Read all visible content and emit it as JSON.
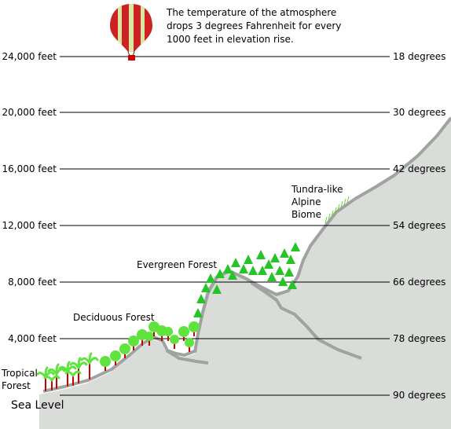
{
  "note": {
    "lines": [
      "The temperature of the atmosphere",
      "drops 3 degrees Fahrenheit for every",
      "1000 feet in elevation rise."
    ]
  },
  "elevations": [
    {
      "feet": "24,000 feet",
      "temp": "18 degrees"
    },
    {
      "feet": "20,000 feet",
      "temp": "30 degrees"
    },
    {
      "feet": "16,000 feet",
      "temp": "42 degrees"
    },
    {
      "feet": "12,000 feet",
      "temp": "54 degrees"
    },
    {
      "feet": "8,000 feet",
      "temp": "66 degrees"
    },
    {
      "feet": "4,000 feet",
      "temp": "78 degrees"
    },
    {
      "feet": "",
      "temp": "90 degrees"
    }
  ],
  "sea_level": "Sea Level",
  "biomes": {
    "tropical": [
      "Tropical",
      "Forest"
    ],
    "deciduous": "Deciduous Forest",
    "evergreen": "Evergreen Forest",
    "tundra": [
      "Tundra-like",
      "Alpine",
      "Biome"
    ]
  },
  "colors": {
    "mountain": "#d9dcd9",
    "ridge": "#a0a3a0",
    "tree_green": "#26c426",
    "deciduous_green": "#5fe33f",
    "trunk": "#cc0000",
    "balloon_red": "#cc2222",
    "balloon_stripe": "#d8e8a0"
  }
}
